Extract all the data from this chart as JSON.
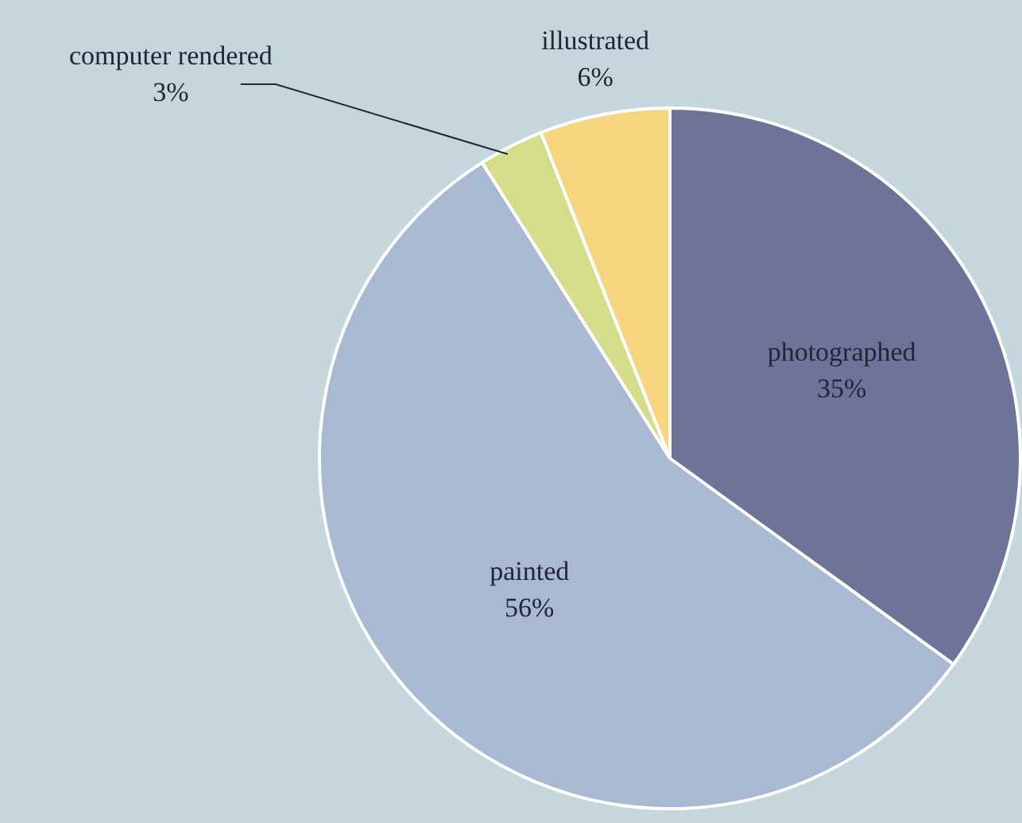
{
  "chart_data": {
    "type": "pie",
    "categories": [
      "photographed",
      "painted",
      "computer rendered",
      "illustrated"
    ],
    "values": [
      35,
      56,
      3,
      6
    ],
    "value_labels": [
      "35%",
      "56%",
      "3%",
      "6%"
    ],
    "colors": [
      "#6e7499",
      "#a8b9d1",
      "#d5dc8a",
      "#f7d57e"
    ],
    "legend": false
  }
}
